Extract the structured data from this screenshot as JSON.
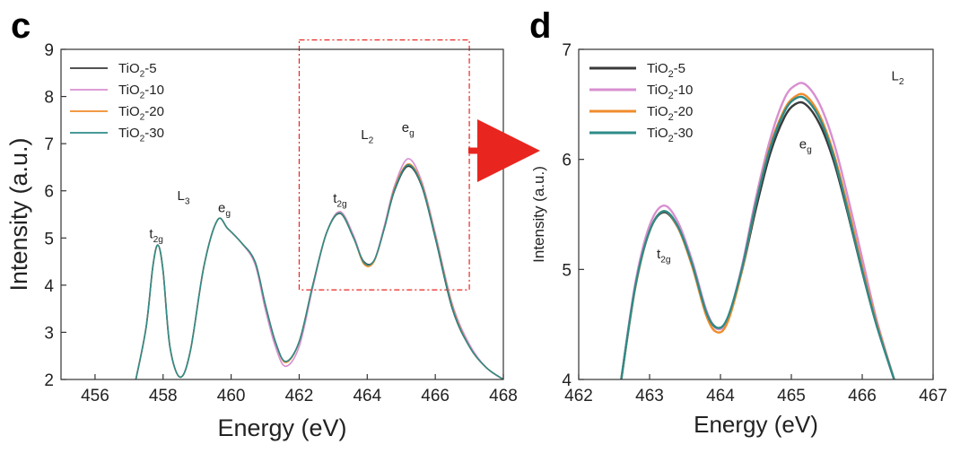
{
  "panels": {
    "c": {
      "label": "c",
      "xlabel": "Energy (eV)",
      "ylabel": "Intensity (a.u.)",
      "zoom_box": {
        "x": [
          462.0,
          467.0
        ],
        "y": [
          3.9,
          9.2
        ]
      }
    },
    "d": {
      "label": "d",
      "xlabel": "Energy (eV)",
      "ylabel": "Intensity (a.u.)"
    }
  },
  "legend": [
    {
      "base": "TiO",
      "sub": "2",
      "suffix": "-5",
      "color": "#3a3a3a"
    },
    {
      "base": "TiO",
      "sub": "2",
      "suffix": "-10",
      "color": "#d88fd0"
    },
    {
      "base": "TiO",
      "sub": "2",
      "suffix": "-20",
      "color": "#f08c2c"
    },
    {
      "base": "TiO",
      "sub": "2",
      "suffix": "-30",
      "color": "#2e8b88"
    }
  ],
  "annotations_c": [
    {
      "id": "t2g-L3",
      "main": "t",
      "sub": "2g",
      "x": 457.8,
      "y": 5.0
    },
    {
      "id": "L3",
      "main": "L",
      "sub": "3",
      "x": 458.6,
      "y": 5.8
    },
    {
      "id": "eg-L3",
      "main": "e",
      "sub": "g",
      "x": 459.8,
      "y": 5.55
    },
    {
      "id": "t2g-L2",
      "main": "t",
      "sub": "2g",
      "x": 463.2,
      "y": 5.75
    },
    {
      "id": "L2",
      "main": "L",
      "sub": "2",
      "x": 464.0,
      "y": 7.1
    },
    {
      "id": "eg-L2",
      "main": "e",
      "sub": "g",
      "x": 465.2,
      "y": 7.25
    }
  ],
  "annotations_d": [
    {
      "id": "L2-d",
      "main": "L",
      "sub": "2",
      "x": 466.5,
      "y": 6.72
    },
    {
      "id": "eg-d",
      "main": "e",
      "sub": "g",
      "x": 465.2,
      "y": 6.1
    },
    {
      "id": "t2g-d",
      "main": "t",
      "sub": "2g",
      "x": 463.2,
      "y": 5.1
    }
  ],
  "chart_data": [
    {
      "type": "line",
      "panel": "c",
      "xlim": [
        455,
        468
      ],
      "ylim": [
        2,
        9
      ],
      "xticks": [
        456,
        458,
        460,
        462,
        464,
        466,
        468
      ],
      "yticks": [
        2,
        3,
        4,
        5,
        6,
        7,
        8,
        9
      ],
      "series": [
        {
          "name": "TiO2-5",
          "color": "#3a3a3a",
          "x": [
            457.2,
            457.5,
            457.7,
            457.85,
            458.0,
            458.2,
            458.5,
            458.8,
            459.2,
            459.6,
            459.9,
            460.3,
            460.7,
            461.0,
            461.3,
            461.6,
            462.0,
            462.4,
            462.8,
            463.2,
            463.6,
            463.9,
            464.2,
            464.5,
            464.8,
            465.2,
            465.6,
            466.0,
            466.5,
            467.0,
            467.5,
            468.0
          ],
          "y": [
            2.0,
            3.1,
            4.4,
            4.85,
            4.3,
            2.7,
            2.05,
            2.6,
            4.4,
            5.38,
            5.2,
            4.9,
            4.5,
            3.6,
            2.8,
            2.38,
            2.8,
            4.0,
            5.1,
            5.52,
            5.0,
            4.5,
            4.52,
            5.2,
            6.0,
            6.52,
            6.1,
            5.0,
            3.5,
            2.7,
            2.25,
            2.0
          ]
        },
        {
          "name": "TiO2-10",
          "color": "#d88fd0",
          "x": [
            457.2,
            457.5,
            457.7,
            457.85,
            458.0,
            458.2,
            458.5,
            458.8,
            459.2,
            459.6,
            459.9,
            460.3,
            460.7,
            461.0,
            461.3,
            461.6,
            462.0,
            462.4,
            462.8,
            463.2,
            463.6,
            463.9,
            464.2,
            464.5,
            464.8,
            465.2,
            465.6,
            466.0,
            466.5,
            467.0,
            467.5,
            468.0
          ],
          "y": [
            2.0,
            3.1,
            4.4,
            4.85,
            4.3,
            2.7,
            2.05,
            2.6,
            4.4,
            5.38,
            5.2,
            4.9,
            4.45,
            3.5,
            2.7,
            2.28,
            2.7,
            3.95,
            5.1,
            5.56,
            5.05,
            4.48,
            4.52,
            5.25,
            6.1,
            6.68,
            6.2,
            5.1,
            3.6,
            2.75,
            2.25,
            2.0
          ]
        },
        {
          "name": "TiO2-20",
          "color": "#f08c2c",
          "x": [
            457.2,
            457.5,
            457.7,
            457.85,
            458.0,
            458.2,
            458.5,
            458.8,
            459.2,
            459.6,
            459.9,
            460.3,
            460.7,
            461.0,
            461.3,
            461.6,
            462.0,
            462.4,
            462.8,
            463.2,
            463.6,
            463.9,
            464.2,
            464.5,
            464.8,
            465.2,
            465.6,
            466.0,
            466.5,
            467.0,
            467.5,
            468.0
          ],
          "y": [
            2.0,
            3.1,
            4.4,
            4.85,
            4.3,
            2.7,
            2.05,
            2.6,
            4.4,
            5.38,
            5.2,
            4.9,
            4.5,
            3.6,
            2.8,
            2.36,
            2.8,
            4.0,
            5.1,
            5.53,
            5.0,
            4.45,
            4.5,
            5.2,
            6.05,
            6.57,
            6.15,
            5.05,
            3.55,
            2.7,
            2.25,
            2.0
          ]
        },
        {
          "name": "TiO2-30",
          "color": "#2e8b88",
          "x": [
            457.2,
            457.5,
            457.7,
            457.85,
            458.0,
            458.2,
            458.5,
            458.8,
            459.2,
            459.6,
            459.9,
            460.3,
            460.7,
            461.0,
            461.3,
            461.6,
            462.0,
            462.4,
            462.8,
            463.2,
            463.6,
            463.9,
            464.2,
            464.5,
            464.8,
            465.2,
            465.6,
            466.0,
            466.5,
            467.0,
            467.5,
            468.0
          ],
          "y": [
            2.0,
            3.1,
            4.4,
            4.85,
            4.3,
            2.7,
            2.05,
            2.6,
            4.4,
            5.38,
            5.2,
            4.9,
            4.5,
            3.6,
            2.8,
            2.38,
            2.8,
            4.0,
            5.1,
            5.53,
            5.0,
            4.48,
            4.52,
            5.2,
            6.02,
            6.55,
            6.12,
            5.02,
            3.52,
            2.7,
            2.25,
            2.0
          ]
        }
      ]
    },
    {
      "type": "line",
      "panel": "d",
      "xlim": [
        462,
        467
      ],
      "ylim": [
        4,
        7
      ],
      "xticks": [
        462,
        463,
        464,
        465,
        466,
        467
      ],
      "yticks": [
        4,
        5,
        6,
        7
      ],
      "series": [
        {
          "name": "TiO2-5",
          "color": "#3a3a3a",
          "x": [
            462.6,
            462.8,
            463.0,
            463.2,
            463.4,
            463.6,
            463.8,
            463.95,
            464.1,
            464.3,
            464.5,
            464.7,
            464.9,
            465.05,
            465.2,
            465.4,
            465.6,
            465.8,
            466.0,
            466.2,
            466.45
          ],
          "y": [
            4.0,
            4.85,
            5.35,
            5.52,
            5.38,
            5.05,
            4.62,
            4.47,
            4.55,
            4.98,
            5.55,
            6.05,
            6.38,
            6.5,
            6.5,
            6.32,
            5.98,
            5.5,
            4.98,
            4.5,
            4.0
          ]
        },
        {
          "name": "TiO2-10",
          "color": "#d88fd0",
          "x": [
            462.6,
            462.8,
            463.0,
            463.2,
            463.4,
            463.6,
            463.8,
            463.95,
            464.1,
            464.3,
            464.5,
            464.7,
            464.9,
            465.05,
            465.2,
            465.4,
            465.6,
            465.8,
            466.0,
            466.2,
            466.45
          ],
          "y": [
            4.0,
            4.88,
            5.4,
            5.58,
            5.43,
            5.08,
            4.63,
            4.46,
            4.55,
            5.02,
            5.65,
            6.18,
            6.55,
            6.67,
            6.68,
            6.5,
            6.15,
            5.65,
            5.1,
            4.55,
            4.0
          ]
        },
        {
          "name": "TiO2-20",
          "color": "#f08c2c",
          "x": [
            462.6,
            462.8,
            463.0,
            463.2,
            463.4,
            463.6,
            463.8,
            463.95,
            464.1,
            464.3,
            464.5,
            464.7,
            464.9,
            465.05,
            465.2,
            465.4,
            465.6,
            465.8,
            466.0,
            466.2,
            466.45
          ],
          "y": [
            4.0,
            4.84,
            5.35,
            5.53,
            5.38,
            5.03,
            4.58,
            4.43,
            4.52,
            4.98,
            5.6,
            6.12,
            6.45,
            6.57,
            6.58,
            6.4,
            6.05,
            5.56,
            5.02,
            4.52,
            4.0
          ]
        },
        {
          "name": "TiO2-30",
          "color": "#2e8b88",
          "x": [
            462.6,
            462.8,
            463.0,
            463.2,
            463.4,
            463.6,
            463.8,
            463.95,
            464.1,
            464.3,
            464.5,
            464.7,
            464.9,
            465.05,
            465.2,
            465.4,
            465.6,
            465.8,
            466.0,
            466.2,
            466.45
          ],
          "y": [
            4.0,
            4.85,
            5.35,
            5.53,
            5.39,
            5.05,
            4.61,
            4.47,
            4.56,
            5.0,
            5.6,
            6.1,
            6.43,
            6.55,
            6.55,
            6.37,
            6.02,
            5.52,
            4.99,
            4.5,
            4.0
          ]
        }
      ]
    }
  ]
}
